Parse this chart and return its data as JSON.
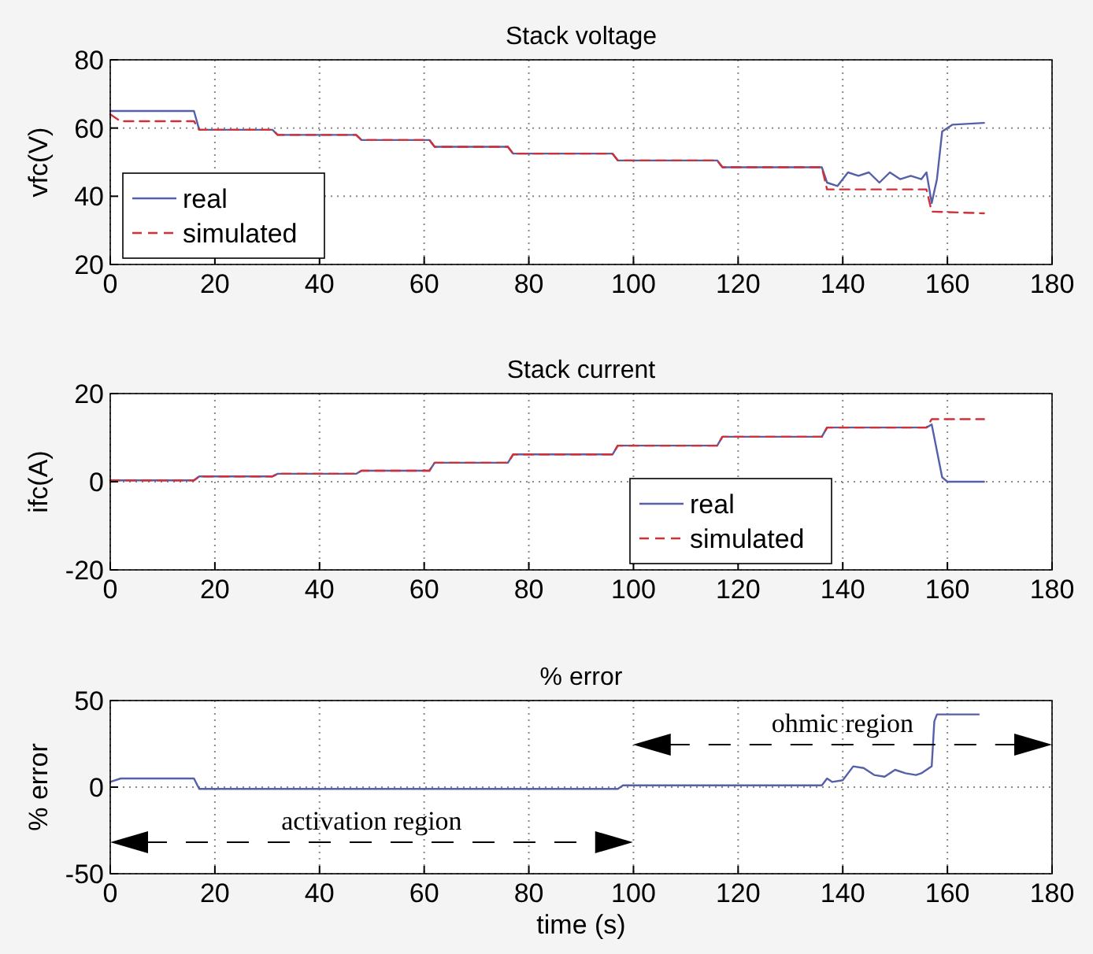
{
  "chart_data": [
    {
      "type": "line",
      "title": "Stack voltage",
      "ylabel": "vfc(V)",
      "xlim": [
        0,
        180
      ],
      "ylim": [
        20,
        80
      ],
      "xticks": [
        0,
        20,
        40,
        60,
        80,
        100,
        120,
        140,
        160,
        180
      ],
      "yticks": [
        20,
        40,
        60,
        80
      ],
      "grid": true,
      "legend": "bottom left",
      "series": [
        {
          "name": "real",
          "color": "#5560a8",
          "line_style": "solid",
          "x": [
            0,
            16,
            17,
            31,
            32,
            47,
            48,
            61,
            62,
            76,
            77,
            96,
            97,
            116,
            117,
            136,
            137,
            139,
            141,
            143,
            145,
            147,
            149,
            151,
            153,
            155,
            156,
            157,
            158,
            159,
            161,
            167
          ],
          "values": [
            65,
            65,
            59.5,
            59.5,
            58,
            58,
            56.5,
            56.5,
            54.5,
            54.5,
            52.5,
            52.5,
            50.5,
            50.5,
            48.5,
            48.5,
            44,
            43,
            47,
            46,
            47,
            44,
            47,
            45,
            46,
            45,
            47,
            38,
            45,
            59,
            61,
            61.5
          ]
        },
        {
          "name": "simulated",
          "color": "#d0303a",
          "line_style": "dashed",
          "x": [
            0,
            2,
            16,
            17,
            31,
            32,
            47,
            48,
            61,
            62,
            76,
            77,
            96,
            97,
            116,
            117,
            136,
            137,
            156,
            157,
            167
          ],
          "values": [
            64,
            62,
            62,
            59.5,
            59.5,
            58,
            58,
            56.5,
            56.5,
            54.5,
            54.5,
            52.5,
            52.5,
            50.5,
            50.5,
            48.5,
            48.5,
            42,
            42,
            35.5,
            35
          ]
        }
      ]
    },
    {
      "type": "line",
      "title": "Stack current",
      "ylabel": "ifc(A)",
      "xlim": [
        0,
        180
      ],
      "ylim": [
        -20,
        20
      ],
      "xticks": [
        0,
        20,
        40,
        60,
        80,
        100,
        120,
        140,
        160,
        180
      ],
      "yticks": [
        -20,
        0,
        20
      ],
      "grid": true,
      "legend": "bottom right",
      "series": [
        {
          "name": "real",
          "color": "#5560a8",
          "line_style": "solid",
          "x": [
            0,
            16,
            17,
            31,
            32,
            47,
            48,
            61,
            62,
            76,
            77,
            96,
            97,
            116,
            117,
            136,
            137,
            156,
            157,
            159,
            160,
            167
          ],
          "values": [
            0.3,
            0.3,
            1.2,
            1.2,
            1.8,
            1.8,
            2.5,
            2.5,
            4.3,
            4.3,
            6.2,
            6.2,
            8.2,
            8.2,
            10.2,
            10.2,
            12.3,
            12.3,
            13,
            1,
            0,
            0
          ]
        },
        {
          "name": "simulated",
          "color": "#d0303a",
          "line_style": "dashed",
          "x": [
            0,
            16,
            17,
            31,
            32,
            47,
            48,
            61,
            62,
            76,
            77,
            96,
            97,
            116,
            117,
            136,
            137,
            156,
            157,
            167
          ],
          "values": [
            0.3,
            0.3,
            1.2,
            1.2,
            1.8,
            1.8,
            2.5,
            2.5,
            4.3,
            4.3,
            6.2,
            6.2,
            8.2,
            8.2,
            10.2,
            10.2,
            12.3,
            12.3,
            14.2,
            14.2
          ]
        }
      ]
    },
    {
      "type": "line",
      "title": "% error",
      "ylabel": "% error",
      "xlabel": "time (s)",
      "xlim": [
        0,
        180
      ],
      "ylim": [
        -50,
        50
      ],
      "xticks": [
        0,
        20,
        40,
        60,
        80,
        100,
        120,
        140,
        160,
        180
      ],
      "yticks": [
        -50,
        0,
        50
      ],
      "grid": true,
      "series": [
        {
          "color": "#5560a8",
          "line_style": "solid",
          "x": [
            0,
            2,
            16,
            17,
            97,
            98,
            136,
            137,
            138,
            140,
            142,
            144,
            146,
            148,
            150,
            152,
            154,
            155,
            156,
            157,
            157.5,
            158,
            166
          ],
          "values": [
            3,
            5,
            5,
            -1,
            -1,
            1,
            1,
            5,
            3,
            4,
            12,
            11,
            7,
            6,
            10,
            8,
            7,
            8,
            10,
            12,
            38,
            42,
            42
          ]
        }
      ],
      "annotations": [
        "activation region",
        "ohmic region"
      ]
    }
  ]
}
